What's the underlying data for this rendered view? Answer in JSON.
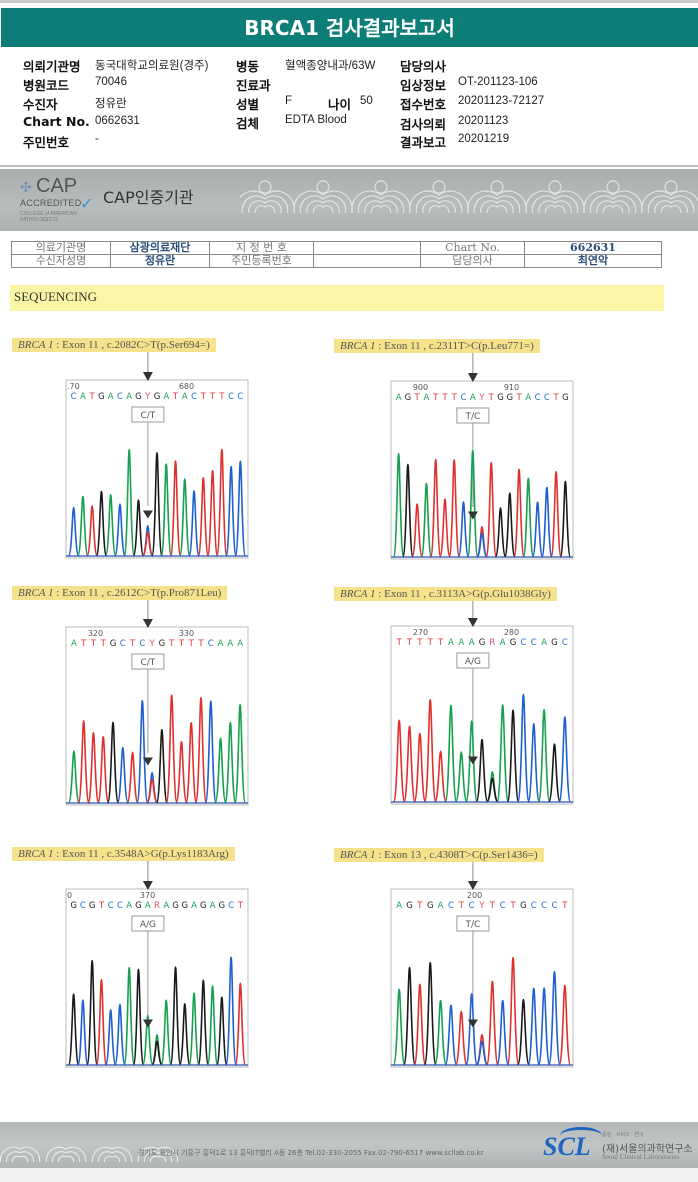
{
  "header": {
    "title": "BRCA1 검사결과보고서"
  },
  "info": {
    "col1": [
      {
        "label": "의뢰기관명",
        "value": "동국대학교의료원(경주)"
      },
      {
        "label": "병원코드",
        "value": "70046"
      },
      {
        "label": "수진자",
        "value": "정유란"
      },
      {
        "label": "Chart No.",
        "value": "0662631"
      },
      {
        "label": "주민번호",
        "value": "-"
      }
    ],
    "col2": [
      {
        "label": "병동",
        "value": "혈액종양내과/63W"
      },
      {
        "label": "진료과",
        "value": ""
      },
      {
        "label": "성별",
        "value": "F"
      },
      {
        "label": "검체",
        "value": "EDTA Blood"
      }
    ],
    "age": {
      "label": "나이",
      "value": "50"
    },
    "col3": [
      {
        "label": "담당의사",
        "value": ""
      },
      {
        "label": "임상정보",
        "value": "OT-201123-106"
      },
      {
        "label": "접수번호",
        "value": "20201123-72127"
      },
      {
        "label": "검사의뢰",
        "value": "20201123"
      },
      {
        "label": "결과보고",
        "value": "20201219"
      }
    ]
  },
  "cap": {
    "logo_main": "CAP",
    "logo_sub": "ACCREDITED",
    "logo_small": "COLLEGE of AMERICAN PATHOLOGISTS",
    "title": "CAP인증기관"
  },
  "patient_table": {
    "row1": [
      "의료기관명",
      "삼광의료재단",
      "지 정 번 호",
      "",
      "Chart No.",
      "662631"
    ],
    "row2": [
      "수신자성명",
      "정유란",
      "주민등록번호",
      "",
      "담당의사",
      "최연악"
    ]
  },
  "section": {
    "title": "SEQUENCING"
  },
  "variants": [
    {
      "gene": "BRCA 1",
      "desc": " : Exon 11 , c.2082C>T(p.Ser694=)",
      "ticks": [
        ".70",
        "680"
      ],
      "seq": "CATGACAGYGATACTTTCC",
      "call": "C/T"
    },
    {
      "gene": "BRCA 1",
      "desc": " : Exon 11 , c.2311T>C(p.Leu771=)",
      "ticks": [
        "900",
        "910"
      ],
      "seq": "AGTATTTCAYTGGTACCTG",
      "call": "T/C"
    },
    {
      "gene": "BRCA 1",
      "desc": " : Exon 11 , c.2612C>T(p.Pro871Leu)",
      "ticks": [
        "320",
        "330"
      ],
      "seq": "ATTTGCTCYGTTTTCAAA",
      "call": "C/T"
    },
    {
      "gene": "BRCA 1",
      "desc": " : Exon 11 , c.3113A>G(p.Glu1038Gly)",
      "ticks": [
        "270",
        "280"
      ],
      "seq": "TTTTTAAAGRAGCCAGC",
      "call": "A/G"
    },
    {
      "gene": "BRCA 1",
      "desc": " : Exon 11 , c.3548A>G(p.Lys1183Arg)",
      "ticks": [
        "0",
        "370"
      ],
      "seq": "GCGTCCAGARAGGAGAGCT",
      "call": "A/G"
    },
    {
      "gene": "BRCA 1",
      "desc": " : Exon 13 , c.4308T>C(p.Ser1436=)",
      "ticks": [
        "200"
      ],
      "seq": "AGTGACTCYTCTGCCCT",
      "call": "T/C"
    }
  ],
  "base_colors": {
    "A": "#1aa35a",
    "C": "#1e6fd0",
    "G": "#222222",
    "T": "#e23a3a",
    "Y": "#d9506a",
    "R": "#d9506a"
  },
  "footer": {
    "address": "경기도 용인시 기흥구 흥덕1로 13 흥덕IT밸리 A동 26층  Tel.02-330-2055  Fax.02-790-6517  www.scllab.co.kr",
    "logo": "SCL",
    "tagline": "품질 · 서비스 · 연구",
    "org": "(재)서울의과학연구소",
    "org_en": "Seoul Clinical Laboratories"
  }
}
